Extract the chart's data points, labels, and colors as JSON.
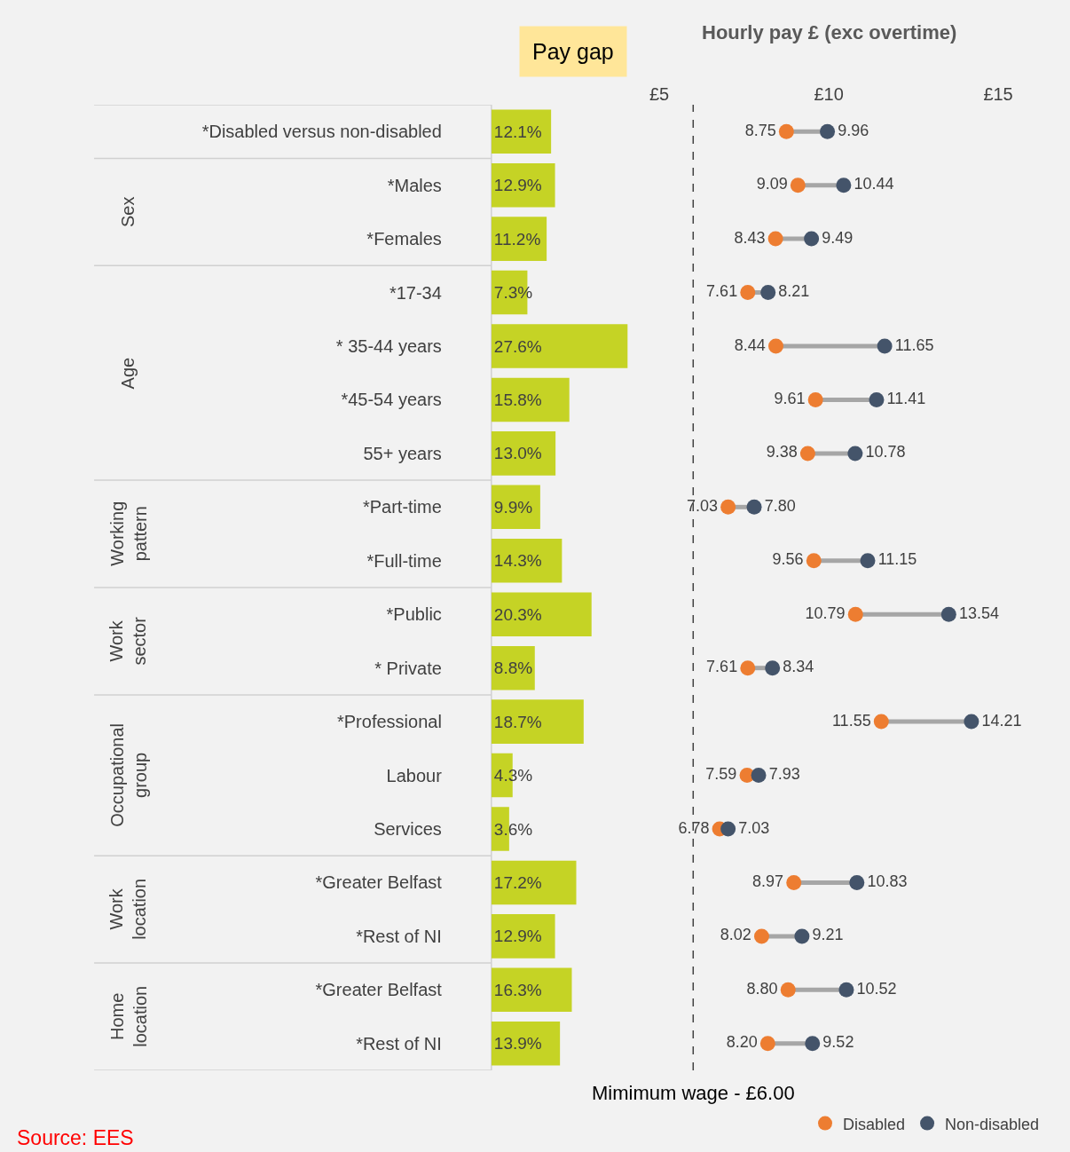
{
  "chart_data": [
    {
      "type": "bar",
      "orientation": "horizontal",
      "title": "Pay gap",
      "tick_labels": "y",
      "categories": [
        "*Disabled versus non-disabled",
        "*Males",
        "*Females",
        "*17-34",
        "* 35-44 years",
        "*45-54 years",
        "55+ years",
        "*Part-time",
        "*Full-time",
        "*Public",
        "* Private",
        "*Professional",
        "Labour",
        "Services",
        "*Greater Belfast",
        "*Rest of NI",
        "*Greater Belfast",
        "*Rest of NI"
      ],
      "values": [
        12.1,
        12.9,
        11.2,
        7.3,
        27.6,
        15.8,
        13.0,
        9.9,
        14.3,
        20.3,
        8.8,
        18.7,
        4.3,
        3.6,
        17.2,
        12.9,
        16.3,
        13.9
      ],
      "value_labels": [
        "12.1%",
        "12.9%",
        "11.2%",
        "7.3%",
        "27.6%",
        "15.8%",
        "13.0%",
        "9.9%",
        "14.3%",
        "20.3%",
        "8.8%",
        "18.7%",
        "4.3%",
        "3.6%",
        "17.2%",
        "12.9%",
        "16.3%",
        "13.9%"
      ],
      "color": "#c5d325",
      "annotations": [
        "Sex",
        "Age",
        "Working pattern",
        "Work sector",
        "Occupational group",
        "Work location",
        "Home location"
      ]
    },
    {
      "type": "scatter",
      "orientation": "horizontal",
      "title": "Hourly pay £ (exc overtime)",
      "tick_labels": "x",
      "marker": "circle",
      "legend": "bottom right",
      "categories": [
        null,
        null,
        null,
        null,
        null,
        null,
        null,
        null,
        null,
        null,
        null,
        null,
        null,
        null,
        null,
        null,
        null,
        null
      ],
      "xlim": [
        5,
        15
      ],
      "xticks": [
        {
          "value": 5,
          "label": "£5"
        },
        {
          "value": 10,
          "label": "£10"
        },
        {
          "value": 15,
          "label": "£15"
        }
      ],
      "series": [
        {
          "name": "Disabled",
          "color": "#ed7d31",
          "values": [
            8.75,
            9.09,
            8.43,
            7.61,
            8.44,
            9.61,
            9.38,
            7.03,
            9.56,
            10.79,
            7.61,
            11.55,
            7.59,
            6.78,
            8.97,
            8.02,
            8.8,
            8.2
          ],
          "value_labels": [
            "8.75",
            "9.09",
            "8.43",
            "7.61",
            "8.44",
            "9.61",
            "9.38",
            "7.03",
            "9.56",
            "10.79",
            "7.61",
            "11.55",
            "7.59",
            "6.78",
            "8.97",
            "8.02",
            "8.80",
            "8.20"
          ]
        },
        {
          "name": "Non-disabled",
          "color": "#44546a",
          "values": [
            9.96,
            10.44,
            9.49,
            8.21,
            11.65,
            11.41,
            10.78,
            7.8,
            11.15,
            13.54,
            8.34,
            14.21,
            7.93,
            7.03,
            10.83,
            9.21,
            10.52,
            9.52
          ],
          "value_labels": [
            "9.96",
            "10.44",
            "9.49",
            "8.21",
            "11.65",
            "11.41",
            "10.78",
            "7.80",
            "11.15",
            "13.54",
            "8.34",
            "14.21",
            "7.93",
            "7.03",
            "10.83",
            "9.21",
            "10.52",
            "9.52"
          ]
        }
      ],
      "ref_lines": [
        {
          "axis": "x",
          "value": 6,
          "label": "Mimimum wage - £6.00",
          "color": "#404040",
          "line_style": "dashed"
        }
      ],
      "annotations": [
        "Source: EES"
      ]
    }
  ]
}
